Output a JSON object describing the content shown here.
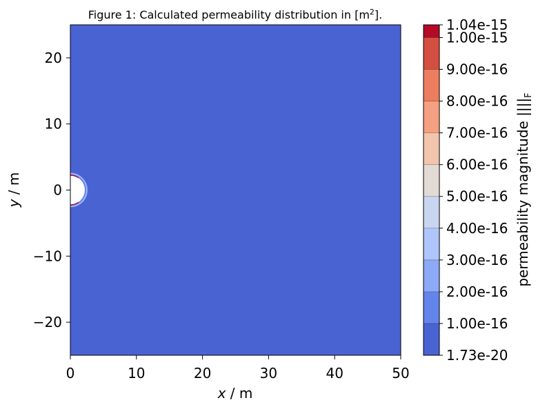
{
  "chart_data": {
    "type": "heatmap",
    "title": "Figure 1: Calculated permeability distribution in [m",
    "title_sup": "2",
    "title_end": "].",
    "xlabel_var": "x",
    "xlabel_unit": " / m",
    "ylabel_var": "y",
    "ylabel_unit": " / m",
    "xlim": [
      0,
      50
    ],
    "ylim": [
      -25,
      25
    ],
    "x_ticks": [
      0,
      10,
      20,
      30,
      40,
      50
    ],
    "x_tick_labels": [
      "0",
      "10",
      "20",
      "30",
      "40",
      "50"
    ],
    "y_ticks": [
      20,
      10,
      0,
      -10,
      -20
    ],
    "y_tick_labels": [
      "20",
      "10",
      "0",
      "−10",
      "−20"
    ],
    "background_level_color": "#4a63d3",
    "hole": {
      "center": [
        0,
        0
      ],
      "radius": 2.4
    },
    "colorbar": {
      "label": "permeability magnitude ||||",
      "label_sub": "F",
      "levels": [
        1.73e-20,
        1e-16,
        2e-16,
        3e-16,
        4e-16,
        5e-16,
        6e-16,
        7e-16,
        8e-16,
        9e-16,
        1e-15,
        1.04e-15
      ],
      "tick_labels": [
        "1.73e-20",
        "1.00e-16",
        "2.00e-16",
        "3.00e-16",
        "4.00e-16",
        "5.00e-16",
        "6.00e-16",
        "7.00e-16",
        "8.00e-16",
        "9.00e-16",
        "1.00e-15",
        "1.04e-15"
      ],
      "colors": [
        "#4a63d3",
        "#6384eb",
        "#8daaf8",
        "#afc6fd",
        "#c8d6f0",
        "#e2dad4",
        "#f2c5ad",
        "#f5a081",
        "#ec7d5f",
        "#d44e41",
        "#b50927"
      ]
    }
  }
}
